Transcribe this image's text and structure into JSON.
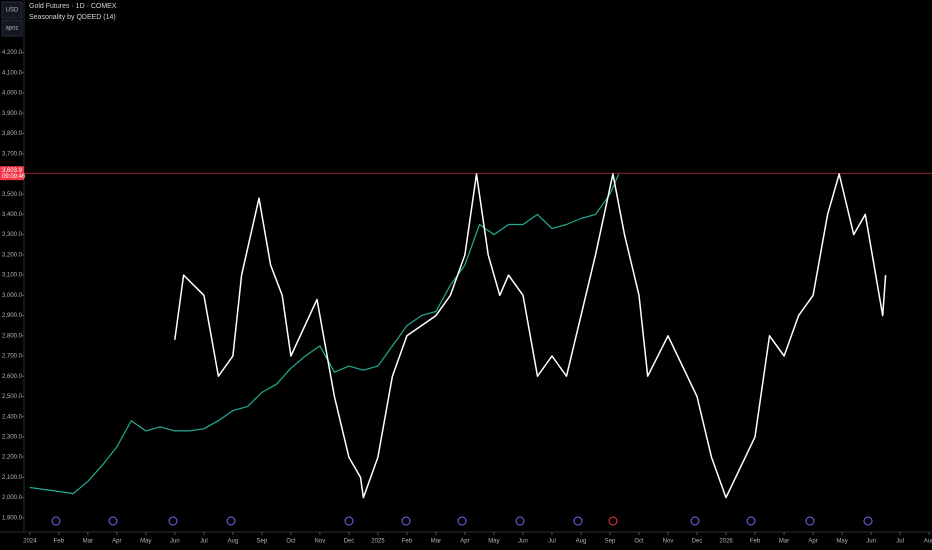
{
  "chart_data": {
    "type": "line",
    "title": "Gold Futures · 1D · COMEX",
    "subtitle": "Seasonality by QDEED (14)",
    "currency": "USD",
    "scale_mode": "apoz",
    "current_price": {
      "value": 3603.9,
      "label": "3,603.9"
    },
    "countdown": "09:09:46",
    "current_price_color": "#f23645",
    "xlim": [
      -0.2,
      31.1
    ],
    "ylim": [
      1830,
      4460
    ],
    "xticks": [
      {
        "value": 0,
        "label": "2024"
      },
      {
        "value": 1,
        "label": "Feb"
      },
      {
        "value": 2,
        "label": "Mar"
      },
      {
        "value": 3,
        "label": "Apr"
      },
      {
        "value": 4,
        "label": "May"
      },
      {
        "value": 5,
        "label": "Jun"
      },
      {
        "value": 6,
        "label": "Jul"
      },
      {
        "value": 7,
        "label": "Aug"
      },
      {
        "value": 8,
        "label": "Sep"
      },
      {
        "value": 9,
        "label": "Oct"
      },
      {
        "value": 10,
        "label": "Nov"
      },
      {
        "value": 11,
        "label": "Dec"
      },
      {
        "value": 12,
        "label": "2025"
      },
      {
        "value": 13,
        "label": "Feb"
      },
      {
        "value": 14,
        "label": "Mar"
      },
      {
        "value": 15,
        "label": "Apr"
      },
      {
        "value": 16,
        "label": "May"
      },
      {
        "value": 17,
        "label": "Jun"
      },
      {
        "value": 18,
        "label": "Jul"
      },
      {
        "value": 19,
        "label": "Aug"
      },
      {
        "value": 20,
        "label": "Sep"
      },
      {
        "value": 21,
        "label": "Oct"
      },
      {
        "value": 22,
        "label": "Nov"
      },
      {
        "value": 23,
        "label": "Dec"
      },
      {
        "value": 24,
        "label": "2026"
      },
      {
        "value": 25,
        "label": "Feb"
      },
      {
        "value": 26,
        "label": "Mar"
      },
      {
        "value": 27,
        "label": "Apr"
      },
      {
        "value": 28,
        "label": "May"
      },
      {
        "value": 29,
        "label": "Jun"
      },
      {
        "value": 30,
        "label": "Jul"
      },
      {
        "value": 31,
        "label": "Aug"
      }
    ],
    "yticks": [
      {
        "value": 1900,
        "label": "1,900.0"
      },
      {
        "value": 2000,
        "label": "2,000.0"
      },
      {
        "value": 2100,
        "label": "2,100.0"
      },
      {
        "value": 2200,
        "label": "2,200.0"
      },
      {
        "value": 2300,
        "label": "2,300.0"
      },
      {
        "value": 2400,
        "label": "2,400.0"
      },
      {
        "value": 2500,
        "label": "2,500.0"
      },
      {
        "value": 2600,
        "label": "2,600.0"
      },
      {
        "value": 2700,
        "label": "2,700.0"
      },
      {
        "value": 2800,
        "label": "2,800.0"
      },
      {
        "value": 2900,
        "label": "2,900.0"
      },
      {
        "value": 3000,
        "label": "3,000.0"
      },
      {
        "value": 3100,
        "label": "3,100.0"
      },
      {
        "value": 3200,
        "label": "3,200.0"
      },
      {
        "value": 3300,
        "label": "3,300.0"
      },
      {
        "value": 3400,
        "label": "3,400.0"
      },
      {
        "value": 3500,
        "label": "3,500.0"
      },
      {
        "value": 3700,
        "label": "3,700.0"
      },
      {
        "value": 3800,
        "label": "3,800.0"
      },
      {
        "value": 3900,
        "label": "3,900.0"
      },
      {
        "value": 4000,
        "label": "4,000.0"
      },
      {
        "value": 4100,
        "label": "4,100.0"
      },
      {
        "value": 4200,
        "label": "4,200.0"
      }
    ],
    "series": [
      {
        "name": "Gold Futures",
        "color": "#22ab94",
        "x": [
          0,
          0.5,
          1,
          1.5,
          2,
          2.5,
          3,
          3.5,
          4,
          4.5,
          5,
          5.5,
          6,
          6.5,
          7,
          7.5,
          8,
          8.5,
          9,
          9.5,
          10,
          10.5,
          11,
          11.5,
          12,
          12.5,
          13,
          13.5,
          14,
          14.5,
          15,
          15.5,
          16,
          16.5,
          17,
          17.5,
          18,
          18.5,
          19,
          19.5,
          20,
          20.3
        ],
        "values": [
          2050,
          2040,
          2030,
          2020,
          2080,
          2160,
          2250,
          2380,
          2330,
          2350,
          2330,
          2330,
          2340,
          2380,
          2430,
          2450,
          2520,
          2560,
          2640,
          2700,
          2750,
          2620,
          2650,
          2630,
          2650,
          2750,
          2850,
          2900,
          2920,
          3050,
          3150,
          3350,
          3300,
          3350,
          3350,
          3400,
          3330,
          3350,
          3380,
          3400,
          3500,
          3600
        ]
      },
      {
        "name": "Seasonality",
        "color": "#ffffff",
        "x": [
          5,
          5.3,
          6,
          6.5,
          7,
          7.3,
          7.9,
          8.3,
          8.7,
          9,
          9.9,
          10.5,
          11,
          11.4,
          11.5,
          12,
          12.5,
          13,
          14,
          14.5,
          15,
          15.4,
          15.8,
          16.2,
          16.5,
          17,
          17.5,
          18,
          18.5,
          19.5,
          20.1,
          20.5,
          21,
          21.3,
          22,
          23,
          23.5,
          24,
          25,
          25.5,
          26,
          26.5,
          27,
          27.5,
          27.9,
          28.4,
          28.8,
          29.4,
          29.5
        ],
        "values": [
          2780,
          3100,
          3000,
          2600,
          2700,
          3100,
          3480,
          3150,
          3000,
          2700,
          2980,
          2500,
          2200,
          2100,
          2000,
          2200,
          2600,
          2800,
          2900,
          3000,
          3200,
          3600,
          3200,
          3000,
          3100,
          3000,
          2600,
          2700,
          2600,
          3200,
          3600,
          3300,
          3000,
          2600,
          2800,
          2500,
          2200,
          2000,
          2300,
          2800,
          2700,
          2900,
          3000,
          3400,
          3600,
          3300,
          3400,
          2900,
          3100
        ]
      }
    ]
  }
}
